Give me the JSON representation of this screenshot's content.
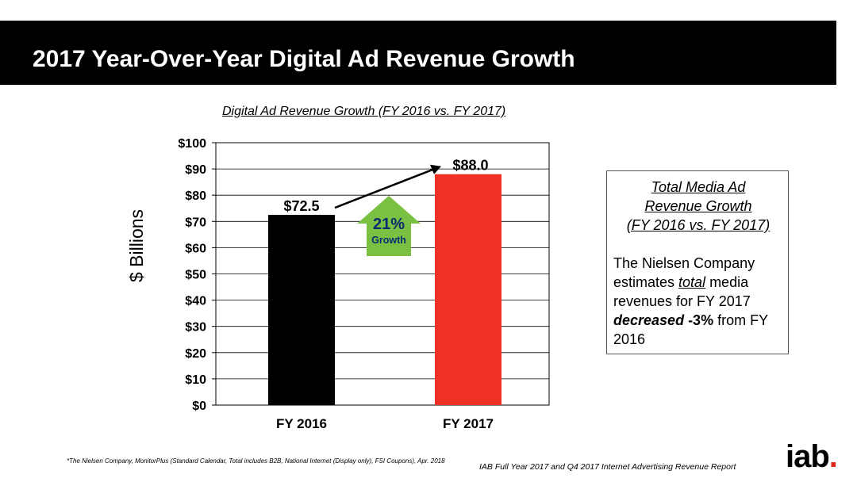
{
  "header": {
    "title": "2017 Year-Over-Year Digital Ad Revenue Growth"
  },
  "colors": {
    "fy2016_bar": "#000000",
    "fy2017_bar": "#ee3124",
    "growth_arrow": "#7ac143",
    "logo_dot": "#e1251b"
  },
  "chart_data": {
    "type": "bar",
    "title": "Digital Ad Revenue Growth (FY 2016 vs. FY 2017)",
    "xlabel": "",
    "ylabel": "$ Billions",
    "categories": [
      "FY 2016",
      "FY 2017"
    ],
    "values": [
      72.5,
      88.0
    ],
    "value_labels": [
      "$72.5",
      "$88.0"
    ],
    "ylim": [
      0,
      100
    ],
    "yticks": [
      0,
      10,
      20,
      30,
      40,
      50,
      60,
      70,
      80,
      90,
      100
    ],
    "ytick_labels": [
      "$0",
      "$10",
      "$20",
      "$30",
      "$40",
      "$50",
      "$60",
      "$70",
      "$80",
      "$90",
      "$100"
    ],
    "grid": true,
    "annotation": {
      "value": "21%",
      "label": "Growth"
    }
  },
  "side_box": {
    "heading_line1": "Total Media Ad",
    "heading_line2": "Revenue Growth",
    "heading_line3": "(FY 2016 vs. FY 2017)",
    "text_1": "The Nielsen Company estimates ",
    "text_emph": "total",
    "text_2": " media revenues for FY 2017 ",
    "text_decreased": "decreased",
    "text_pct": " -3%",
    "text_3": " from FY 2016"
  },
  "footer": {
    "footnote": "*The Nielsen Company, MonitorPlus (Standard Calendar, Total includes B2B, National Internet (Display only), FSI Coupons), Apr. 2018",
    "source": "IAB Full Year 2017 and Q4 2017 Internet Advertising Revenue Report",
    "logo_text": "iab",
    "logo_dot": "."
  }
}
